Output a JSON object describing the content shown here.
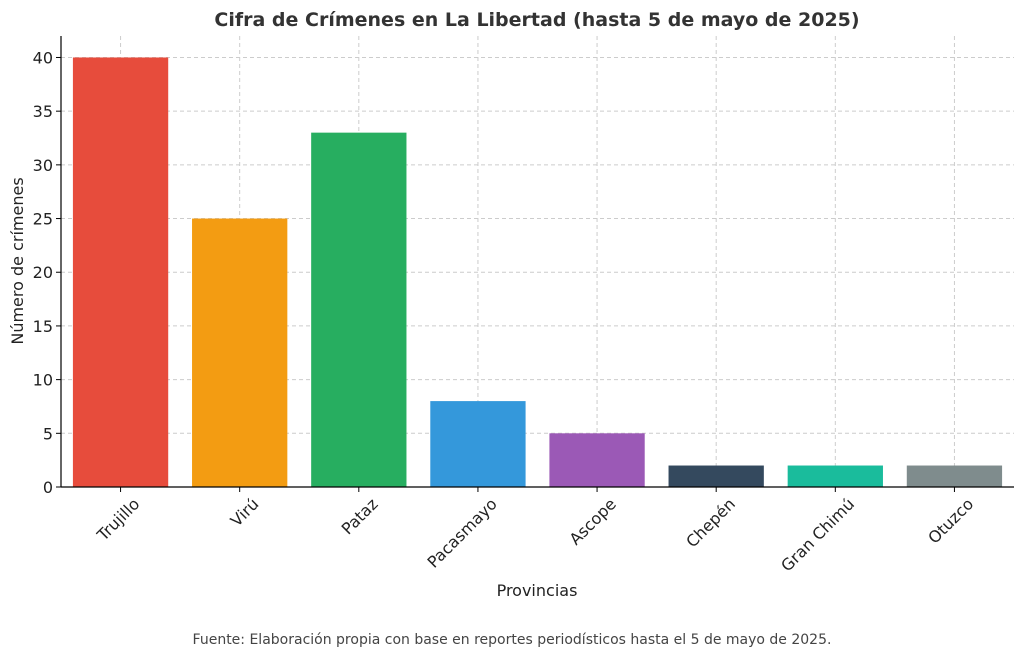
{
  "chart_data": {
    "type": "bar",
    "title": "Cifra de Crímenes en La Libertad (hasta 5 de mayo de 2025)",
    "xlabel": "Provincias",
    "ylabel": "Número de crímenes",
    "categories": [
      "Trujillo",
      "Virú",
      "Pataz",
      "Pacasmayo",
      "Ascope",
      "Chepén",
      "Gran Chimú",
      "Otuzco"
    ],
    "values": [
      40,
      25,
      33,
      8,
      5,
      2,
      2,
      2
    ],
    "colors": [
      "#e74c3c",
      "#f39c12",
      "#27ae60",
      "#3498db",
      "#9b59b6",
      "#34495e",
      "#1abc9c",
      "#7f8c8d"
    ],
    "ylim": [
      0,
      42
    ],
    "yticks": [
      0,
      5,
      10,
      15,
      20,
      25,
      30,
      35,
      40
    ],
    "grid": true
  },
  "footnote": "Fuente: Elaboración propia con base en reportes periodísticos hasta el 5 de mayo de 2025."
}
